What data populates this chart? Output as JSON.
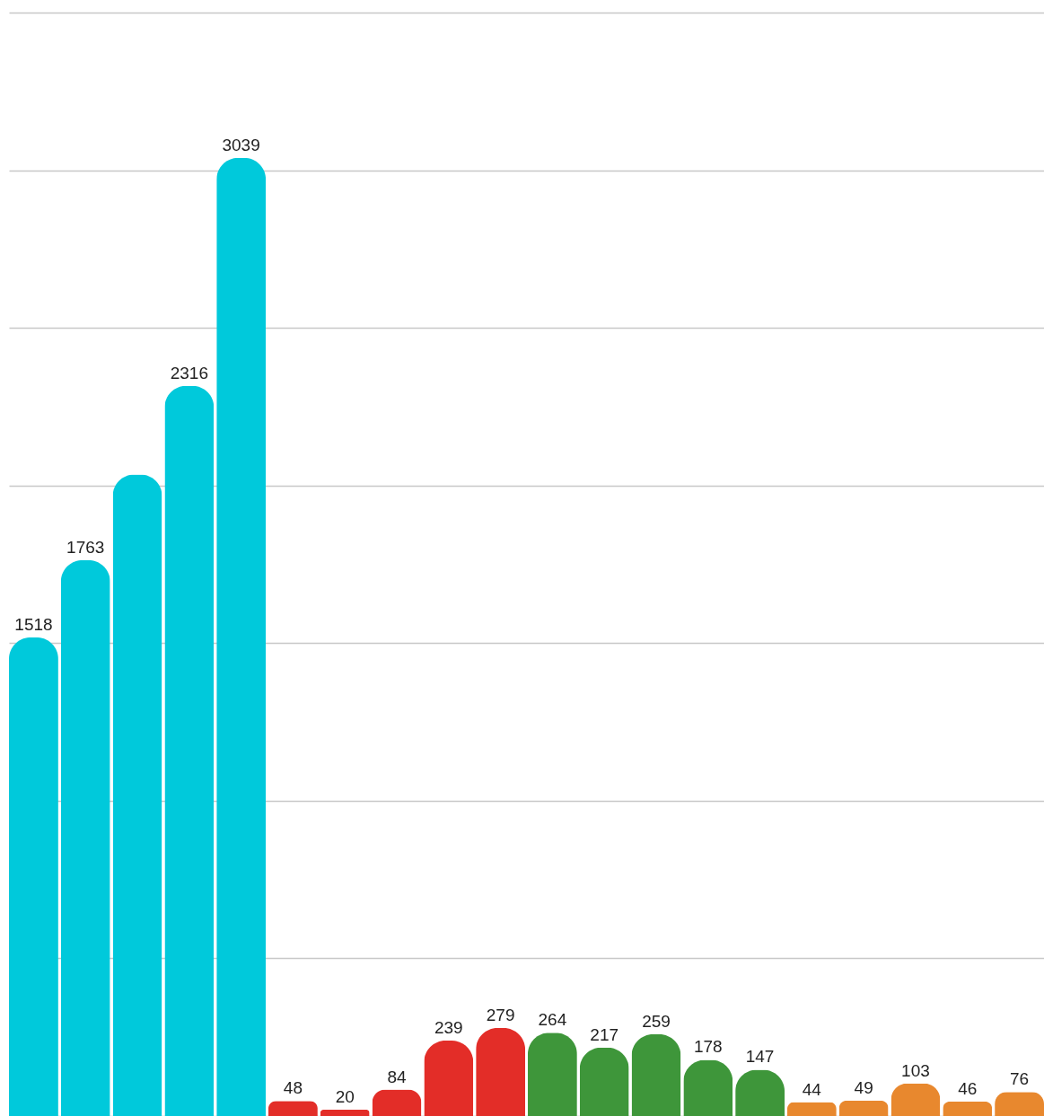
{
  "chart_data": {
    "type": "bar",
    "categories": [
      null,
      null,
      null,
      null,
      null,
      null,
      null,
      null,
      null,
      null,
      null,
      null,
      null,
      null,
      null,
      null,
      null,
      null,
      null,
      null
    ],
    "values": [
      1518,
      1763,
      2035,
      2316,
      3039,
      48,
      20,
      84,
      239,
      279,
      264,
      217,
      259,
      178,
      147,
      44,
      49,
      103,
      46,
      76
    ],
    "colors": [
      "#00c9db",
      "#00c9db",
      "#00c9db",
      "#00c9db",
      "#00c9db",
      "#e32d28",
      "#e32d28",
      "#e32d28",
      "#e32d28",
      "#e32d28",
      "#3e963a",
      "#3e963a",
      "#3e963a",
      "#3e963a",
      "#3e963a",
      "#e8882e",
      "#e8882e",
      "#e8882e",
      "#e8882e",
      "#e8882e"
    ],
    "value_labels": [
      "1518",
      "1763",
      null,
      "2316",
      "3039",
      "48",
      "20",
      "84",
      "239",
      "279",
      "264",
      "217",
      "259",
      "178",
      "147",
      "44",
      "49",
      "103",
      "46",
      "76"
    ],
    "ylim": [
      0,
      3500
    ],
    "yticks": [
      {
        "value": 0,
        "label": null
      },
      {
        "value": 500,
        "label": null
      },
      {
        "value": 1000,
        "label": null
      },
      {
        "value": 1500,
        "label": null
      },
      {
        "value": 2000,
        "label": null
      },
      {
        "value": 2500,
        "label": null
      },
      {
        "value": 3000,
        "label": null
      },
      {
        "value": 3500,
        "label": null
      }
    ],
    "grid": "y"
  }
}
